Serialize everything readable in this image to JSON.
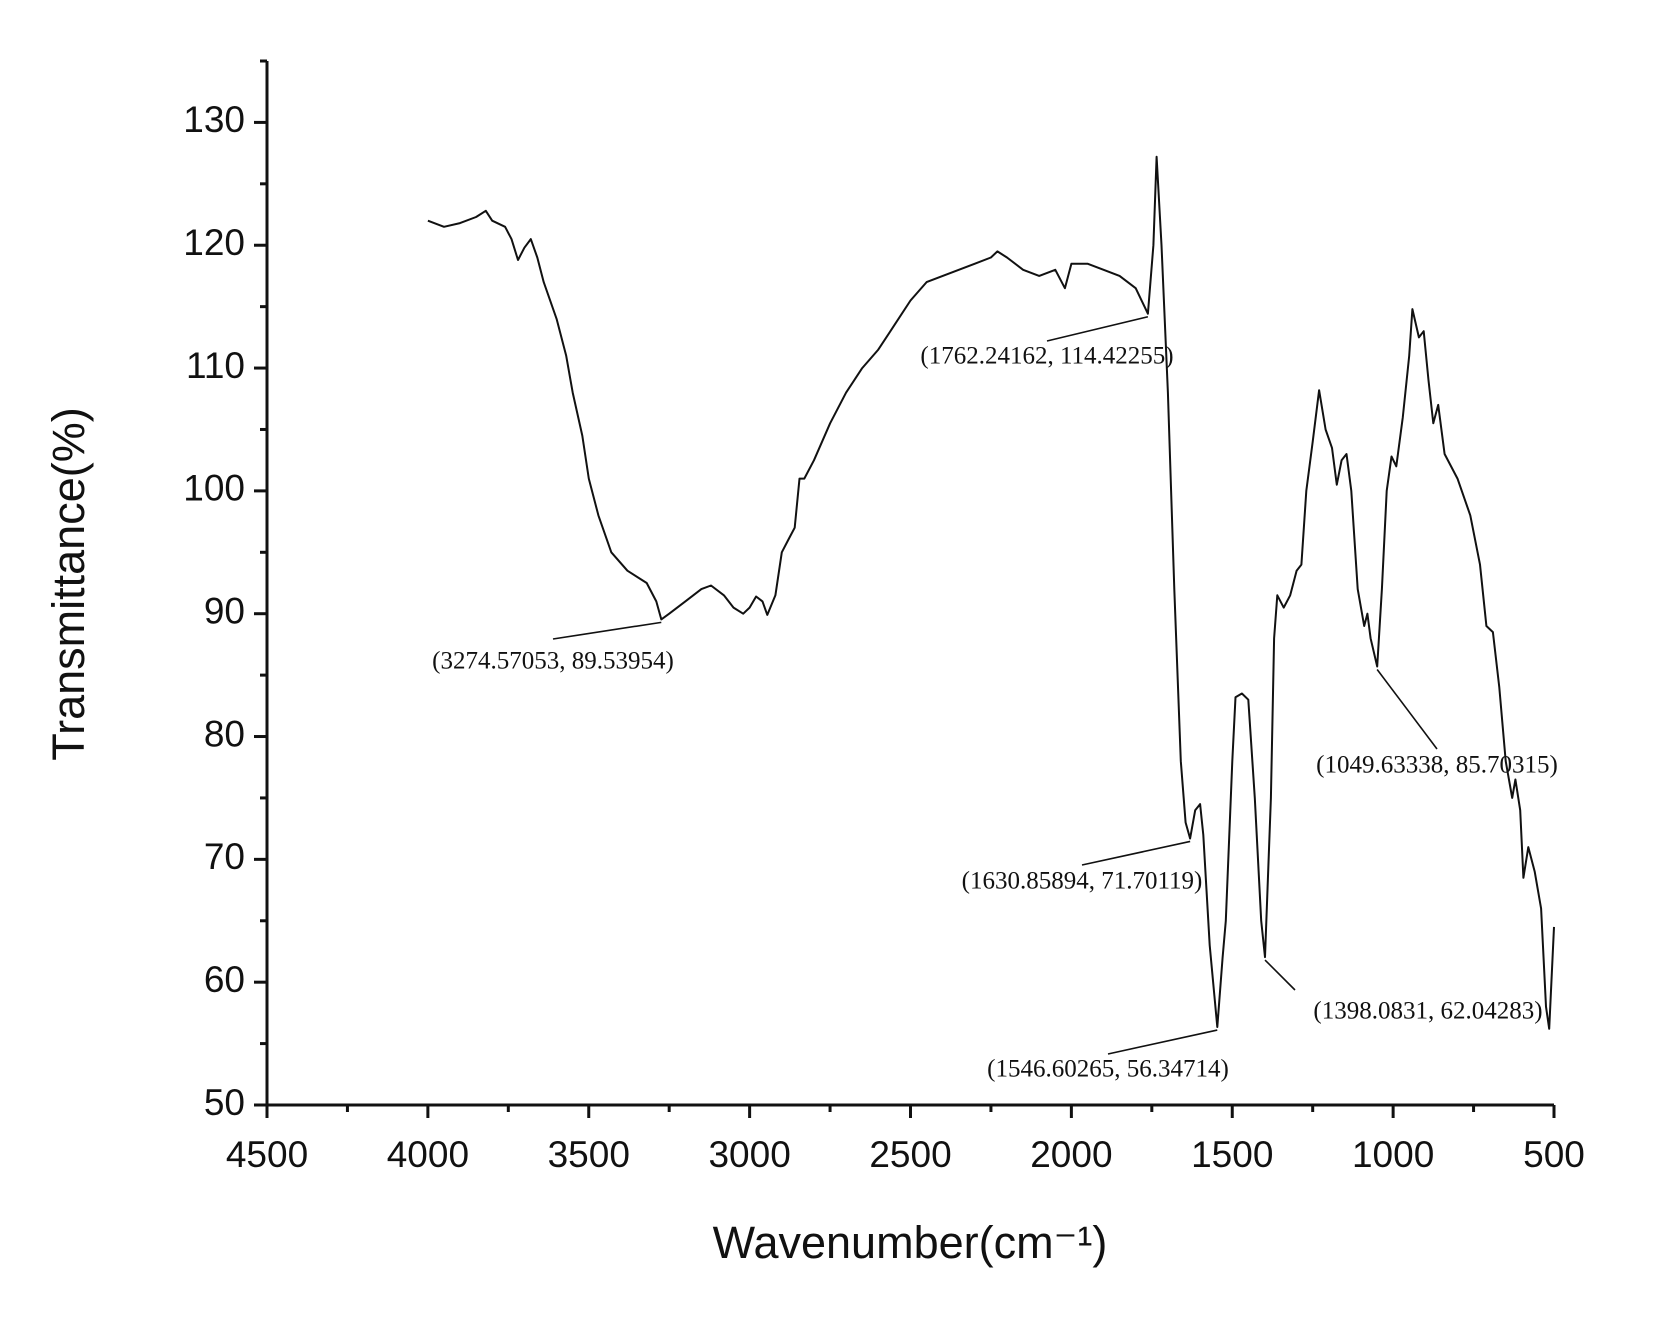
{
  "chart_data": {
    "type": "line",
    "x_label": "Wavenumber(cm⁻¹)",
    "y_label": "Transmittance(%)",
    "color": "#111111",
    "xlim": [
      4500,
      500
    ],
    "ylim": [
      50,
      135
    ],
    "xticks": [
      4500,
      4000,
      3500,
      3000,
      2500,
      2000,
      1500,
      1000,
      500
    ],
    "yticks": [
      50,
      60,
      70,
      80,
      90,
      100,
      110,
      120,
      130
    ],
    "xminor_ticks": [
      4250,
      3750,
      3250,
      2750,
      2250,
      1750,
      1250,
      750
    ],
    "yminor_ticks": [
      55,
      65,
      75,
      85,
      95,
      105,
      115,
      125,
      135
    ],
    "x": [
      4000,
      3950,
      3900,
      3850,
      3820,
      3800,
      3760,
      3740,
      3720,
      3700,
      3680,
      3660,
      3640,
      3600,
      3570,
      3550,
      3520,
      3500,
      3470,
      3430,
      3380,
      3320,
      3290,
      3274.57053,
      3250,
      3200,
      3150,
      3120,
      3080,
      3050,
      3020,
      3000,
      2980,
      2960,
      2945,
      2920,
      2900,
      2880,
      2860,
      2845,
      2830,
      2800,
      2750,
      2700,
      2650,
      2600,
      2550,
      2500,
      2450,
      2400,
      2300,
      2250,
      2230,
      2200,
      2150,
      2100,
      2050,
      2020,
      2000,
      1950,
      1900,
      1850,
      1800,
      1762.24162,
      1745,
      1735,
      1720,
      1700,
      1680,
      1660,
      1645,
      1630.85894,
      1615,
      1600,
      1590,
      1570,
      1546.60265,
      1530,
      1520,
      1500,
      1490,
      1470,
      1450,
      1430,
      1410,
      1398.0831,
      1380,
      1370,
      1360,
      1340,
      1320,
      1300,
      1285,
      1270,
      1250,
      1230,
      1210,
      1190,
      1175,
      1160,
      1145,
      1130,
      1110,
      1090,
      1080,
      1070,
      1049.63338,
      1035,
      1020,
      1005,
      990,
      970,
      950,
      940,
      920,
      905,
      890,
      875,
      860,
      840,
      800,
      760,
      730,
      710,
      690,
      670,
      650,
      630,
      620,
      605,
      595,
      580,
      560,
      540,
      525,
      515,
      500
    ],
    "values": [
      122,
      121.5,
      121.8,
      122.3,
      122.8,
      122,
      121.5,
      120.5,
      118.8,
      119.8,
      120.5,
      119,
      117,
      114,
      111,
      108,
      104.5,
      101,
      98,
      95,
      93.5,
      92.5,
      91,
      89.53954,
      90,
      91,
      92,
      92.3,
      91.5,
      90.5,
      90,
      90.5,
      91.4,
      91,
      89.9,
      91.5,
      95,
      96,
      97,
      101,
      101,
      102.5,
      105.5,
      108,
      110,
      111.5,
      113.5,
      115.5,
      117,
      117.5,
      118.5,
      119,
      119.5,
      119,
      118,
      117.5,
      118,
      116.5,
      118.5,
      118.5,
      118,
      117.5,
      116.5,
      114.42255,
      120,
      127.2,
      120,
      108,
      92,
      78,
      73,
      71.70119,
      74,
      74.5,
      72,
      63,
      56.34714,
      62,
      65,
      78,
      83.2,
      83.5,
      83,
      75,
      65,
      62.04283,
      75,
      88,
      91.5,
      90.5,
      91.5,
      93.5,
      94,
      100,
      104,
      108.2,
      105,
      103.5,
      100.5,
      102.5,
      103,
      100,
      92,
      89,
      90,
      88,
      85.70315,
      92,
      100,
      102.8,
      102,
      106,
      111,
      114.8,
      112.5,
      113,
      109,
      105.5,
      107,
      103,
      101,
      98,
      94,
      89,
      88.5,
      84,
      78,
      75,
      76.5,
      74,
      68.5,
      71,
      69,
      66,
      58,
      56.2,
      64.5
    ],
    "annotations": [
      {
        "x": 3274.57053,
        "y": 89.53954,
        "label": "(3274.57053, 89.53954)"
      },
      {
        "x": 1762.24162,
        "y": 114.42255,
        "label": "(1762.24162, 114.42255)"
      },
      {
        "x": 1630.85894,
        "y": 71.70119,
        "label": "(1630.85894, 71.70119)"
      },
      {
        "x": 1546.60265,
        "y": 56.34714,
        "label": "(1546.60265, 56.34714)"
      },
      {
        "x": 1398.0831,
        "y": 62.04283,
        "label": "(1398.0831, 62.04283)"
      },
      {
        "x": 1049.63338,
        "y": 85.70315,
        "label": "(1049.63338, 85.70315)"
      }
    ]
  }
}
